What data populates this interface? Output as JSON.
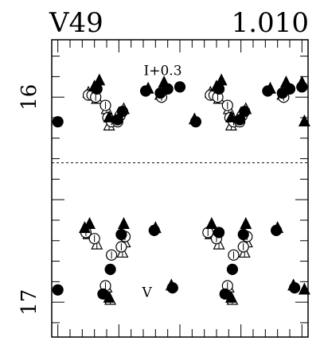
{
  "chart_data": {
    "type": "scatter",
    "title": "",
    "star_label": "V49",
    "period_label": "1.010",
    "xlabel": "",
    "ylabel": "",
    "xlim": [
      -0.05,
      2.05
    ],
    "ylim": [
      17.17,
      15.72
    ],
    "y_inverted": true,
    "y_tick_labels": [
      "16",
      "17"
    ],
    "y_tick_values": [
      16.0,
      17.0
    ],
    "divider_y": 16.32,
    "annotations": [
      {
        "text": "I+0.3",
        "x": 0.86,
        "y": 15.87
      },
      {
        "text": "V",
        "x": 0.73,
        "y": 16.95
      }
    ],
    "series": [
      {
        "name": "I+0.3",
        "points": {
          "filled_circle": [
            [
              0.0,
              16.12
            ],
            [
              0.32,
              15.96
            ],
            [
              0.49,
              16.11
            ],
            [
              0.53,
              16.07
            ],
            [
              0.72,
              15.97
            ],
            [
              0.84,
              15.98
            ],
            [
              0.9,
              15.96
            ],
            [
              1.0,
              15.95
            ],
            [
              1.13,
              16.12
            ],
            [
              1.32,
              15.96
            ],
            [
              1.49,
              16.11
            ],
            [
              1.53,
              16.07
            ],
            [
              1.72,
              15.97
            ],
            [
              1.84,
              15.98
            ],
            [
              1.9,
              15.96
            ],
            [
              2.0,
              15.95
            ]
          ],
          "filled_triangle": [
            [
              0.3,
              15.95
            ],
            [
              0.34,
              15.92
            ],
            [
              0.42,
              16.1
            ],
            [
              0.74,
              15.96
            ],
            [
              0.87,
              15.93
            ],
            [
              1.12,
              16.11
            ],
            [
              1.3,
              15.95
            ],
            [
              1.34,
              15.92
            ],
            [
              1.42,
              16.1
            ],
            [
              1.74,
              15.96
            ],
            [
              1.87,
              15.93
            ],
            [
              2.0,
              15.93
            ],
            [
              2.02,
              16.12
            ]
          ],
          "open_circle": [
            [
              0.25,
              15.99
            ],
            [
              0.28,
              15.99
            ],
            [
              0.31,
              16.0
            ],
            [
              0.39,
              16.04
            ],
            [
              0.41,
              16.1
            ],
            [
              0.44,
              16.12
            ],
            [
              0.49,
              16.12
            ],
            [
              0.51,
              16.09
            ],
            [
              0.85,
              16.0
            ],
            [
              1.25,
              15.99
            ],
            [
              1.28,
              15.99
            ],
            [
              1.31,
              16.0
            ],
            [
              1.39,
              16.04
            ],
            [
              1.41,
              16.1
            ],
            [
              1.44,
              16.12
            ],
            [
              1.49,
              16.12
            ],
            [
              1.51,
              16.09
            ],
            [
              1.85,
              16.0
            ]
          ],
          "open_triangle": [
            [
              0.25,
              15.98
            ],
            [
              0.29,
              15.98
            ],
            [
              0.32,
              16.01
            ],
            [
              0.4,
              16.06
            ],
            [
              0.42,
              16.14
            ],
            [
              0.5,
              16.08
            ],
            [
              0.54,
              16.06
            ],
            [
              0.84,
              15.99
            ],
            [
              1.25,
              15.98
            ],
            [
              1.29,
              15.98
            ],
            [
              1.32,
              16.01
            ],
            [
              1.4,
              16.06
            ],
            [
              1.42,
              16.14
            ],
            [
              1.5,
              16.08
            ],
            [
              1.54,
              16.06
            ],
            [
              1.84,
              15.99
            ]
          ]
        }
      },
      {
        "name": "V",
        "points": {
          "filled_circle": [
            [
              0.0,
              16.94
            ],
            [
              0.37,
              16.96
            ],
            [
              0.43,
              16.84
            ],
            [
              0.52,
              16.67
            ],
            [
              0.79,
              16.65
            ],
            [
              0.94,
              16.93
            ],
            [
              1.32,
              16.66
            ],
            [
              1.37,
              16.96
            ],
            [
              1.43,
              16.84
            ],
            [
              1.52,
              16.67
            ],
            [
              1.79,
              16.65
            ],
            [
              1.94,
              16.93
            ]
          ],
          "filled_triangle": [
            [
              0.22,
              16.64
            ],
            [
              0.26,
              16.62
            ],
            [
              0.42,
              16.98
            ],
            [
              0.54,
              16.62
            ],
            [
              0.8,
              16.64
            ],
            [
              0.93,
              16.92
            ],
            [
              1.26,
              16.62
            ],
            [
              1.42,
              16.98
            ],
            [
              1.54,
              16.62
            ],
            [
              1.8,
              16.64
            ],
            [
              1.93,
              16.92
            ],
            [
              2.02,
              16.94
            ]
          ],
          "open_circle": [
            [
              0.23,
              16.66
            ],
            [
              0.3,
              16.69
            ],
            [
              0.39,
              16.92
            ],
            [
              0.44,
              16.77
            ],
            [
              0.52,
              16.73
            ],
            [
              0.55,
              16.68
            ],
            [
              1.23,
              16.66
            ],
            [
              1.3,
              16.69
            ],
            [
              1.39,
              16.92
            ],
            [
              1.44,
              16.77
            ],
            [
              1.52,
              16.73
            ],
            [
              1.55,
              16.68
            ]
          ],
          "open_triangle": [
            [
              0.25,
              16.67
            ],
            [
              0.32,
              16.72
            ],
            [
              0.4,
              16.93
            ],
            [
              0.43,
              16.99
            ],
            [
              0.53,
              16.76
            ],
            [
              0.55,
              16.71
            ],
            [
              1.25,
              16.67
            ],
            [
              1.32,
              16.72
            ],
            [
              1.4,
              16.93
            ],
            [
              1.43,
              16.99
            ],
            [
              1.53,
              16.76
            ],
            [
              1.55,
              16.71
            ]
          ]
        }
      }
    ],
    "grid": false,
    "legend": "none"
  }
}
